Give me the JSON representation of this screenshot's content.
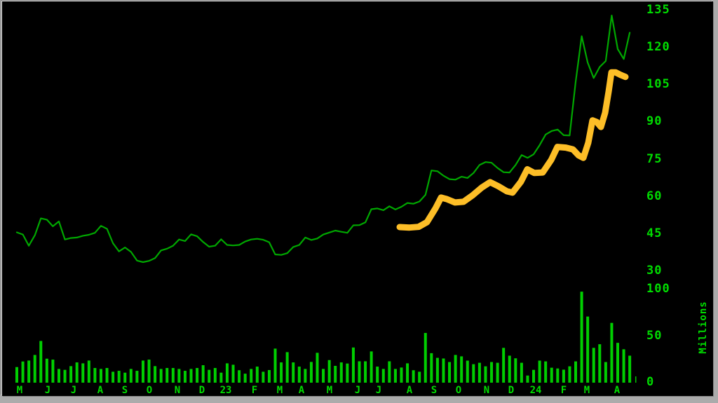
{
  "window": {
    "background": "#000000",
    "frame_color": "#ababab"
  },
  "chart_data": {
    "type": "line",
    "title": "",
    "description": "Terminal-style weekly stock price chart (green line) with hand-highlighted uptrend (thick orange line) and weekly volume bars below, May 2022 - April 2024",
    "grid": "off",
    "legend": "none",
    "x_axis": {
      "month_labels": [
        "M",
        "J",
        "J",
        "A",
        "S",
        "O",
        "N",
        "D",
        "23",
        "F",
        "M",
        "A",
        "M",
        "J",
        "J",
        "A",
        "S",
        "O",
        "N",
        "D",
        "24",
        "F",
        "M",
        "A"
      ],
      "month_label_x": [
        28,
        68,
        105,
        143,
        178,
        213,
        253,
        288,
        322,
        363,
        399,
        430,
        470,
        510,
        540,
        584,
        619,
        654,
        694,
        729,
        764,
        804,
        837,
        880
      ]
    },
    "price_axis": {
      "side": "right",
      "tick_values": [
        135,
        120,
        105,
        90,
        75,
        60,
        45,
        30
      ],
      "range": [
        30,
        135
      ]
    },
    "volume_axis": {
      "side": "right",
      "tick_values": [
        100,
        50,
        0
      ],
      "unit_label": "Millions",
      "range": [
        0,
        100
      ]
    },
    "series": [
      {
        "name": "price",
        "type": "line",
        "color": "#00a800",
        "interval": "weekly",
        "values": [
          45.4,
          44.5,
          40.0,
          44.2,
          51.0,
          50.5,
          47.8,
          49.8,
          42.5,
          43.1,
          43.3,
          44.0,
          44.4,
          45.2,
          48.0,
          46.8,
          41.0,
          37.7,
          39.3,
          37.5,
          34.0,
          33.4,
          33.9,
          35.0,
          38.1,
          38.8,
          40.0,
          42.5,
          41.9,
          44.6,
          43.8,
          41.5,
          39.6,
          40.0,
          42.6,
          40.3,
          40.1,
          40.3,
          41.7,
          42.5,
          42.8,
          42.4,
          41.4,
          36.5,
          36.3,
          37.0,
          39.5,
          40.3,
          43.3,
          42.3,
          42.9,
          44.5,
          45.3,
          46.1,
          45.6,
          45.2,
          48.2,
          48.3,
          49.4,
          54.7,
          55.0,
          54.3,
          55.9,
          54.6,
          55.7,
          57.2,
          56.9,
          57.8,
          60.5,
          70.3,
          70.0,
          68.2,
          66.8,
          66.6,
          67.8,
          67.3,
          69.3,
          72.5,
          73.7,
          73.4,
          71.3,
          69.6,
          69.5,
          72.5,
          76.5,
          75.4,
          76.8,
          80.5,
          84.8,
          86.2,
          86.8,
          84.5,
          84.4,
          106.0,
          124.4,
          113.8,
          107.5,
          112.0,
          114.4,
          132.7,
          119.2,
          115.2,
          125.8
        ]
      },
      {
        "name": "trend-highlight",
        "type": "line",
        "color": "#fdbe27",
        "points": [
          [
            570,
            47.5
          ],
          [
            584,
            47.3
          ],
          [
            597,
            47.6
          ],
          [
            609,
            49.5
          ],
          [
            621,
            55.0
          ],
          [
            629,
            59.4
          ],
          [
            637,
            58.8
          ],
          [
            649,
            57.4
          ],
          [
            661,
            57.7
          ],
          [
            674,
            60.3
          ],
          [
            687,
            63.4
          ],
          [
            699,
            65.6
          ],
          [
            711,
            63.9
          ],
          [
            723,
            61.9
          ],
          [
            731,
            61.4
          ],
          [
            743,
            65.8
          ],
          [
            752,
            70.8
          ],
          [
            762,
            69.3
          ],
          [
            774,
            69.5
          ],
          [
            786,
            74.5
          ],
          [
            795,
            79.8
          ],
          [
            807,
            79.5
          ],
          [
            817,
            78.8
          ],
          [
            825,
            76.4
          ],
          [
            832,
            75.4
          ],
          [
            839,
            81.5
          ],
          [
            845,
            90.5
          ],
          [
            851,
            89.8
          ],
          [
            857,
            87.8
          ],
          [
            863,
            93.5
          ],
          [
            868,
            102.0
          ],
          [
            872,
            109.8
          ],
          [
            878,
            109.8
          ],
          [
            885,
            108.8
          ],
          [
            892,
            108.0
          ]
        ]
      },
      {
        "name": "volume",
        "type": "bar",
        "color": "#00cf00",
        "unit": "millions",
        "values": [
          16,
          22,
          23,
          29,
          44,
          25,
          24,
          14,
          13,
          17,
          21,
          20,
          23,
          15,
          14,
          15,
          11,
          12,
          10,
          14,
          12,
          23,
          24,
          17,
          14,
          15,
          15,
          14,
          12,
          14,
          15,
          18,
          13,
          15,
          10,
          20,
          18.5,
          12.6,
          8.9,
          14,
          16.5,
          11,
          12.8,
          35.8,
          21,
          32,
          21,
          16.5,
          14,
          21.5,
          31.3,
          14,
          23.5,
          17.3,
          21,
          19.8,
          37,
          22.2,
          22.2,
          32.8,
          16.5,
          14,
          22.2,
          14,
          15.5,
          20,
          12.6,
          11,
          52.6,
          30.9,
          25.9,
          25.2,
          21.4,
          29,
          27.5,
          22.9,
          19.1,
          20.6,
          16.8,
          21.4,
          20.6,
          36.6,
          28.2,
          25.4,
          20.6,
          6.9,
          13,
          22.9,
          22.1,
          15.3,
          14.5,
          13.2,
          16.8,
          22.1,
          96.9,
          70.2,
          36.6,
          40.5,
          21.4,
          63.4,
          42,
          35.1,
          28.2
        ]
      }
    ]
  }
}
